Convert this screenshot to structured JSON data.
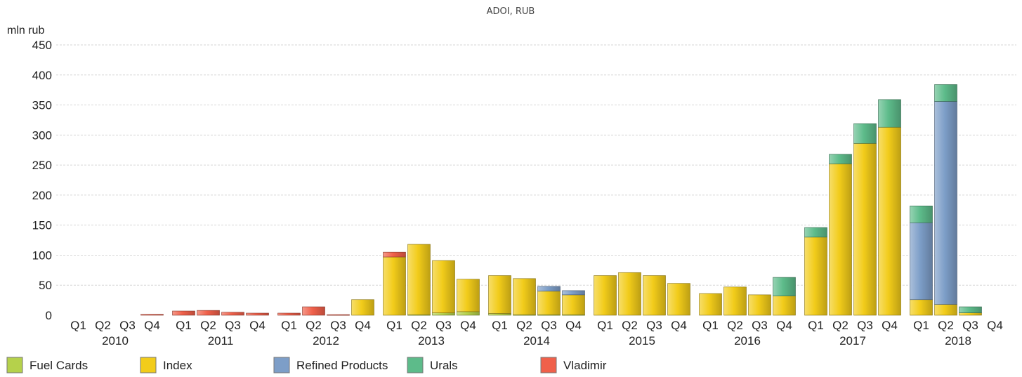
{
  "chart_data": {
    "type": "bar",
    "stacked": true,
    "title": "ADOI, RUB",
    "ylabel": "mln rub",
    "ylim": [
      0,
      450
    ],
    "yticks": [
      0,
      50,
      100,
      150,
      200,
      250,
      300,
      350,
      400,
      450
    ],
    "grid": true,
    "legend_position": "bottom",
    "years": [
      "2010",
      "2011",
      "2012",
      "2013",
      "2014",
      "2015",
      "2016",
      "2017",
      "2018"
    ],
    "quarters": [
      "Q1",
      "Q2",
      "Q3",
      "Q4"
    ],
    "series": [
      {
        "name": "Fuel Cards",
        "color": "#b5d14b",
        "values": [
          0,
          0,
          0,
          0,
          0,
          0,
          0,
          0,
          0,
          0,
          0,
          0,
          0,
          1,
          4,
          6,
          3,
          1,
          1,
          1,
          0,
          0,
          0,
          0,
          0,
          0,
          0,
          0,
          0,
          0,
          0,
          0,
          0,
          0,
          0,
          0
        ]
      },
      {
        "name": "Index",
        "color": "#f2cc1a",
        "values": [
          0,
          0,
          0,
          0,
          0,
          0,
          0,
          0,
          0,
          0,
          0,
          26,
          97,
          117,
          87,
          54,
          63,
          60,
          39,
          33,
          66,
          71,
          66,
          53,
          36,
          47,
          34,
          32,
          130,
          252,
          286,
          313,
          26,
          18,
          4,
          0
        ]
      },
      {
        "name": "Refined Products",
        "color": "#7d9ec8",
        "values": [
          0,
          0,
          0,
          0,
          0,
          0,
          0,
          0,
          0,
          0,
          0,
          0,
          0,
          0,
          0,
          0,
          0,
          0,
          8,
          7,
          0,
          0,
          0,
          0,
          0,
          0,
          0,
          0,
          0,
          0,
          0,
          0,
          128,
          338,
          0,
          0
        ]
      },
      {
        "name": "Urals",
        "color": "#5dbb8a",
        "values": [
          0,
          0,
          0,
          0,
          0,
          0,
          0,
          0,
          0,
          0,
          0,
          0,
          0,
          0,
          0,
          0,
          0,
          0,
          0,
          0,
          0,
          0,
          0,
          0,
          0,
          0,
          0,
          31,
          16,
          16,
          33,
          46,
          28,
          28,
          10,
          0
        ]
      },
      {
        "name": "Vladimir",
        "color": "#f0604a",
        "values": [
          0,
          0,
          0,
          1.5,
          7,
          8,
          5,
          3.5,
          3.5,
          14,
          1,
          0,
          8,
          0,
          0,
          0,
          0,
          0,
          0,
          0,
          0,
          0,
          0,
          0,
          0,
          0,
          0,
          0,
          0,
          0,
          0,
          0,
          0,
          0,
          0,
          0
        ]
      }
    ]
  }
}
